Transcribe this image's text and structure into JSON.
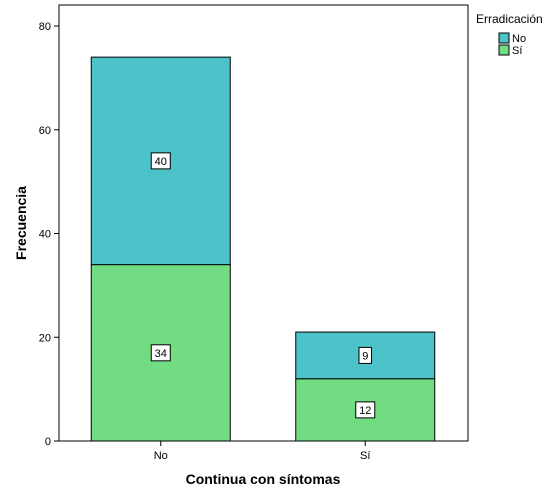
{
  "chart_data": {
    "type": "bar",
    "stacked": true,
    "categories": [
      "No",
      "Sí"
    ],
    "series": [
      {
        "name": "Sí",
        "values": [
          34,
          12
        ],
        "color": "#72dc83"
      },
      {
        "name": "No",
        "values": [
          40,
          9
        ],
        "color": "#4bc3c8"
      }
    ],
    "xlabel": "Continua con síntomas",
    "ylabel": "Frecuencia",
    "ylim": [
      0,
      80
    ],
    "yticks": [
      0,
      20,
      40,
      60,
      80
    ],
    "legend": {
      "title": "Erradicación",
      "placement": "top-right",
      "items": [
        {
          "label": "No",
          "color": "#4bc3c8"
        },
        {
          "label": "Sí",
          "color": "#72dc83"
        }
      ]
    },
    "data_labels": true,
    "grid": false
  }
}
